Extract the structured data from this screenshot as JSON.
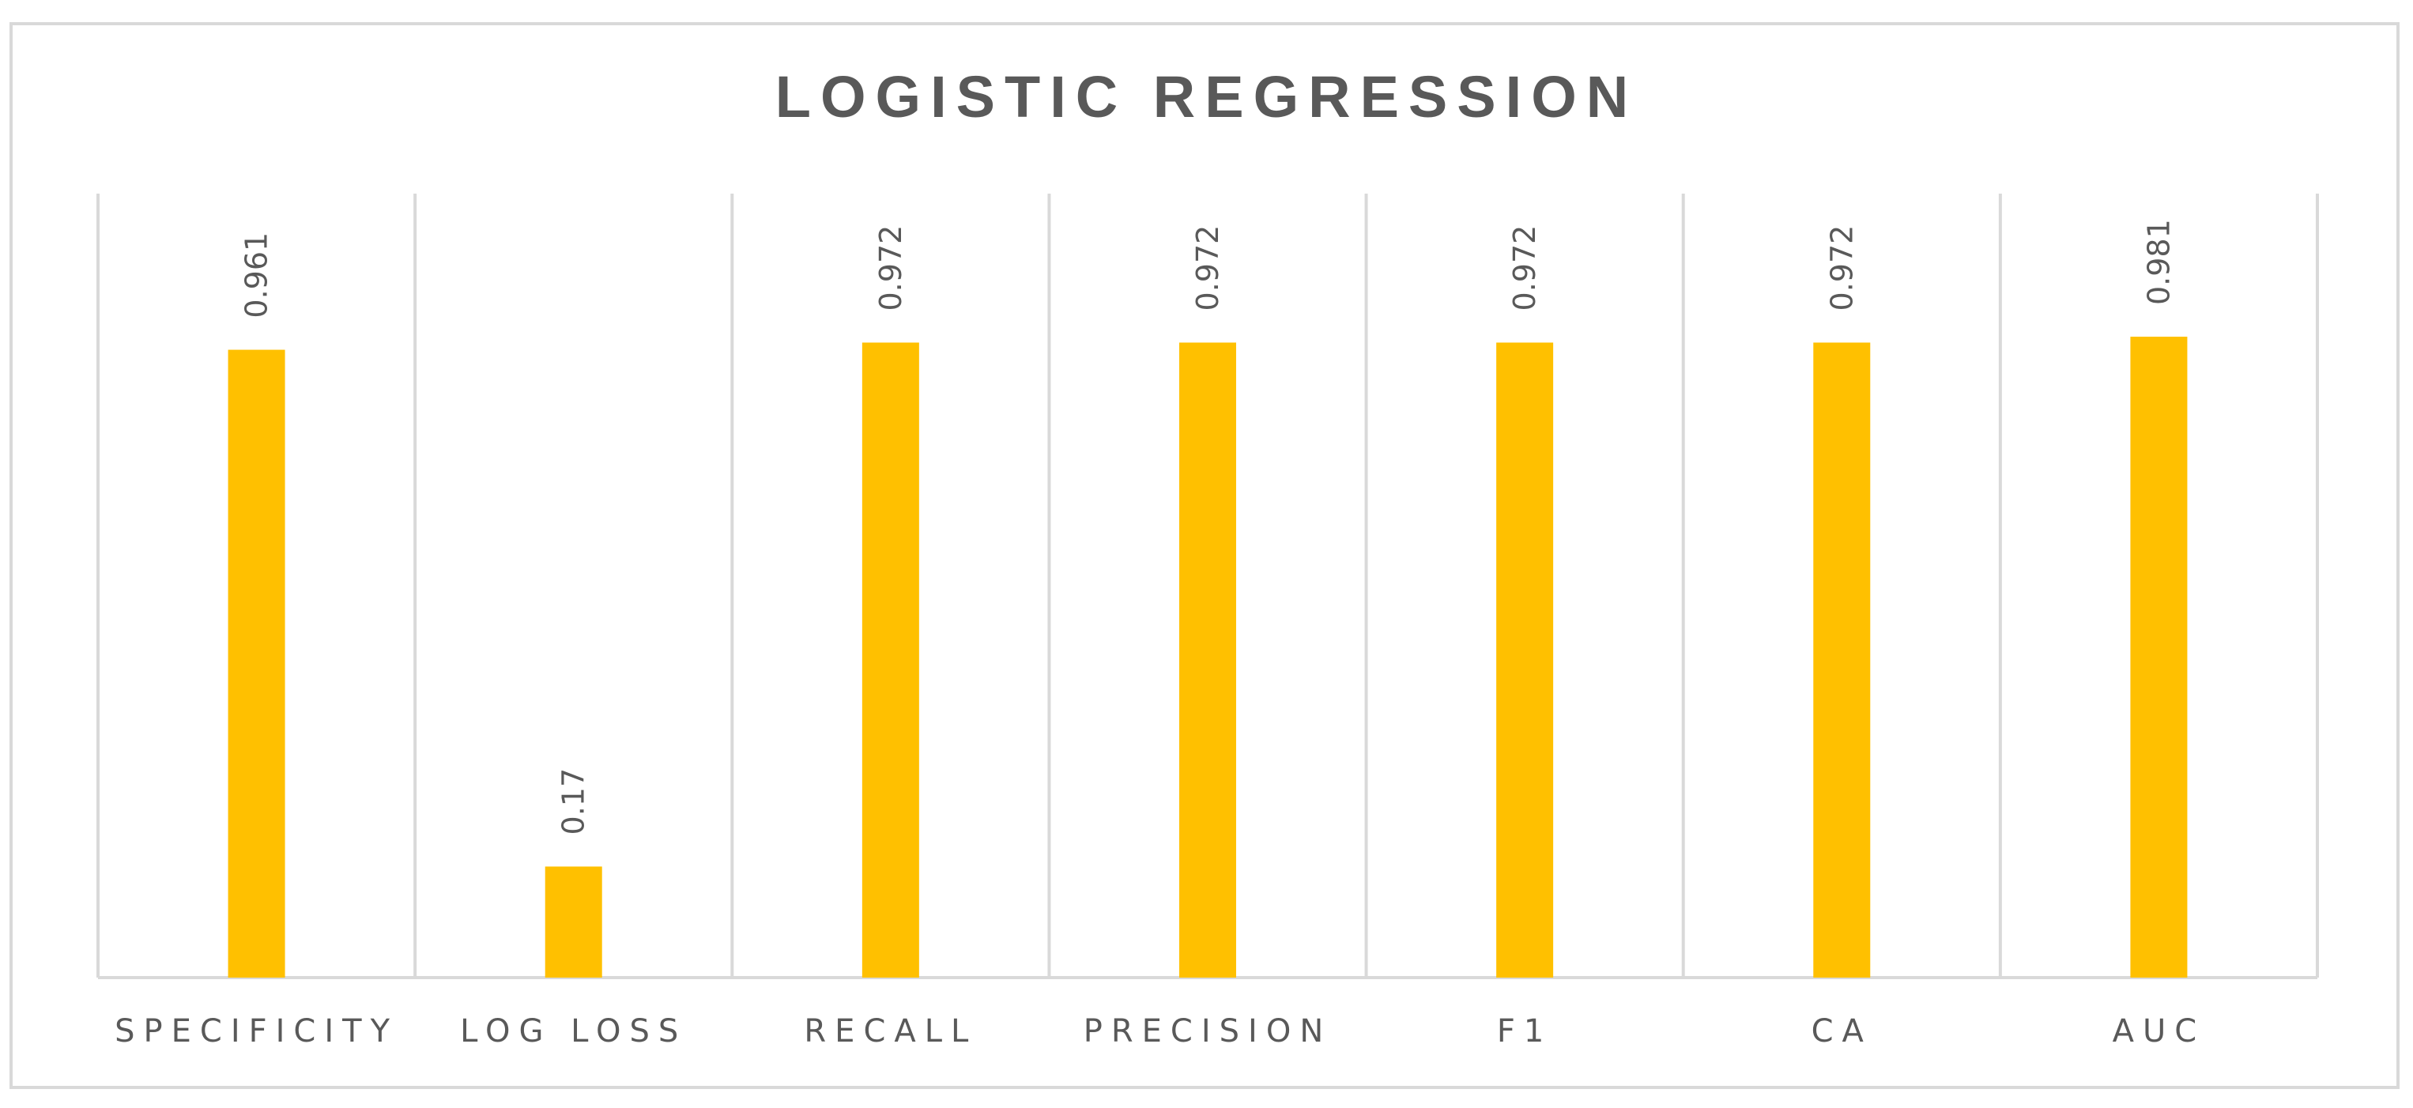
{
  "chart_data": {
    "type": "bar",
    "title": "LOGISTIC REGRESSION",
    "categories": [
      "SPECIFICITY",
      "LOG LOSS",
      "RECALL",
      "PRECISION",
      "F1",
      "CA",
      "AUC"
    ],
    "values": [
      0.961,
      0.17,
      0.972,
      0.972,
      0.972,
      0.972,
      0.981
    ],
    "data_labels": [
      "0.961",
      "0.17",
      "0.972",
      "0.972",
      "0.972",
      "0.972",
      "0.981"
    ],
    "xlabel": "",
    "ylabel": "",
    "ylim": [
      0,
      1.2
    ],
    "grid": "vertical category separators",
    "legend": "none",
    "colors": {
      "bar": "#ffc000",
      "gridline": "#d9d9d9",
      "text": "#595959"
    }
  }
}
